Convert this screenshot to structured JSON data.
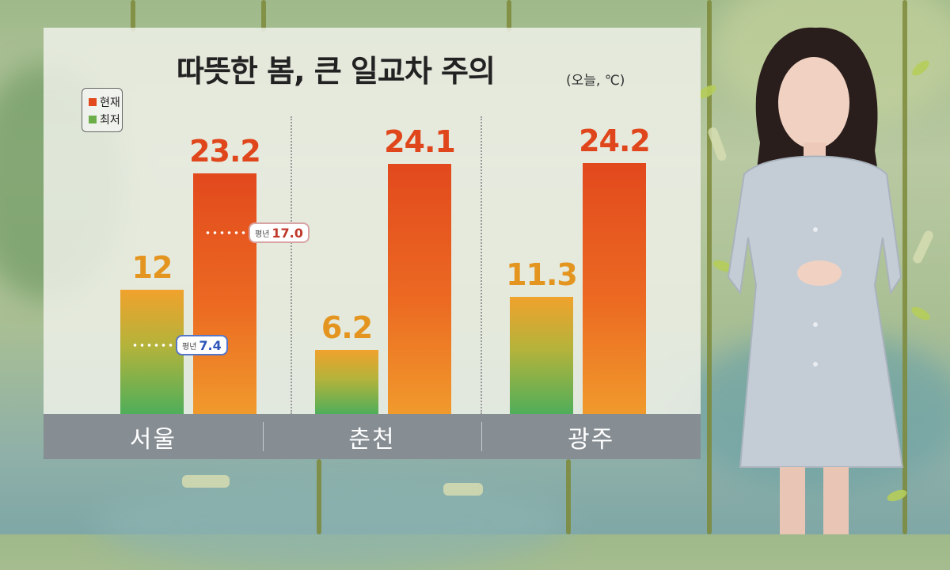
{
  "title": "따뜻한 봄, 큰 일교차 주의",
  "title_unit": "(오늘, ℃)",
  "legend": [
    {
      "label": "현재",
      "color": "#e2491d"
    },
    {
      "label": "최저",
      "color": "#6cae4a"
    }
  ],
  "avg_key": "평년",
  "chart_data": {
    "type": "bar",
    "title": "따뜻한 봄, 큰 일교차 주의",
    "unit": "(오늘, ℃)",
    "categories": [
      "서울",
      "춘천",
      "광주"
    ],
    "series": [
      {
        "name": "최저",
        "values": [
          12,
          6.2,
          11.3
        ],
        "labels": [
          "12",
          "6.2",
          "11.3"
        ],
        "color": "#6cae4a"
      },
      {
        "name": "현재",
        "values": [
          23.2,
          24.1,
          24.2
        ],
        "labels": [
          "23.2",
          "24.1",
          "24.2"
        ],
        "color": "#e2491d"
      }
    ],
    "annotations": [
      {
        "category": "서울",
        "series": "현재",
        "label": "평년",
        "value": "17.0"
      },
      {
        "category": "서울",
        "series": "최저",
        "label": "평년",
        "value": "7.4"
      }
    ],
    "ylim": [
      0,
      30
    ]
  }
}
